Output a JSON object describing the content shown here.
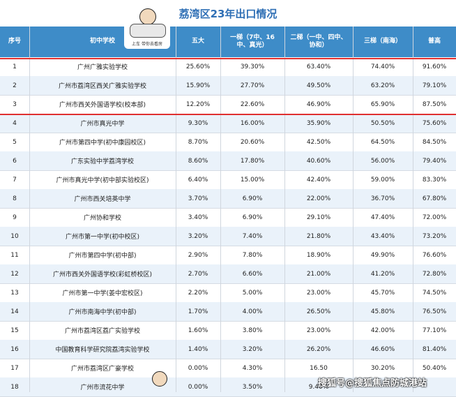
{
  "title": "荔湾区23年出口情况",
  "sticker_text": "上车 带你去看房",
  "headers": [
    "序号",
    "初中学校",
    "五大",
    "一梯（7中、16中、真光）",
    "二梯（一中、四中、协和）",
    "三梯（南海）",
    "普高"
  ],
  "rows": [
    [
      "1",
      "广州广雅实验学校",
      "25.60%",
      "39.30%",
      "63.40%",
      "74.40%",
      "91.60%"
    ],
    [
      "2",
      "广州市荔湾区西关广雅实验学校",
      "15.90%",
      "27.70%",
      "49.50%",
      "63.20%",
      "79.10%"
    ],
    [
      "3",
      "广州市西关外国语学校(校本部)",
      "12.20%",
      "22.60%",
      "46.90%",
      "65.90%",
      "87.50%"
    ],
    [
      "4",
      "广州市真光中学",
      "9.30%",
      "16.00%",
      "35.90%",
      "50.50%",
      "75.60%"
    ],
    [
      "5",
      "广州市第四中学(初中康园校区)",
      "8.70%",
      "20.60%",
      "42.50%",
      "64.50%",
      "84.50%"
    ],
    [
      "6",
      "广东实验中学荔湾学校",
      "8.60%",
      "17.80%",
      "40.60%",
      "56.00%",
      "79.40%"
    ],
    [
      "7",
      "广州市真光中学(初中部实验校区)",
      "6.40%",
      "15.00%",
      "42.40%",
      "59.00%",
      "83.30%"
    ],
    [
      "8",
      "广州市西关培英中学",
      "3.70%",
      "6.90%",
      "22.00%",
      "36.70%",
      "67.80%"
    ],
    [
      "9",
      "广州协和学校",
      "3.40%",
      "6.90%",
      "29.10%",
      "47.40%",
      "72.00%"
    ],
    [
      "10",
      "广州市第一中学(初中校区)",
      "3.20%",
      "7.40%",
      "21.80%",
      "43.40%",
      "73.20%"
    ],
    [
      "11",
      "广州市第四中学(初中部)",
      "2.90%",
      "7.80%",
      "18.90%",
      "49.90%",
      "76.60%"
    ],
    [
      "12",
      "广州市西关外国语学校(彩虹桥校区)",
      "2.70%",
      "6.60%",
      "21.00%",
      "41.20%",
      "72.80%"
    ],
    [
      "13",
      "广州市第一中学(姜中宏校区)",
      "2.20%",
      "5.00%",
      "23.00%",
      "45.70%",
      "74.50%"
    ],
    [
      "14",
      "广州市南海中学(初中部)",
      "1.70%",
      "4.00%",
      "26.50%",
      "45.80%",
      "76.50%"
    ],
    [
      "15",
      "广州市荔湾区荔广实验学校",
      "1.60%",
      "3.80%",
      "23.00%",
      "42.00%",
      "77.10%"
    ],
    [
      "16",
      "中国教育科学研究院荔湾实验学校",
      "1.40%",
      "3.20%",
      "26.20%",
      "46.60%",
      "81.40%"
    ],
    [
      "17",
      "广州市荔湾区广豪学校",
      "0.00%",
      "4.30%",
      "16.50",
      "30.20%",
      "50.40%"
    ],
    [
      "18",
      "广州市流花中学",
      "0.00%",
      "3.50%",
      "9.40%",
      "",
      ""
    ]
  ],
  "watermark": "搜狐号@搜狐焦点防城港站",
  "colors": {
    "header_bg": "#3e8cc8",
    "title": "#2f6fb5",
    "divider": "#e03030",
    "alt_row": "#eaf2fa"
  }
}
